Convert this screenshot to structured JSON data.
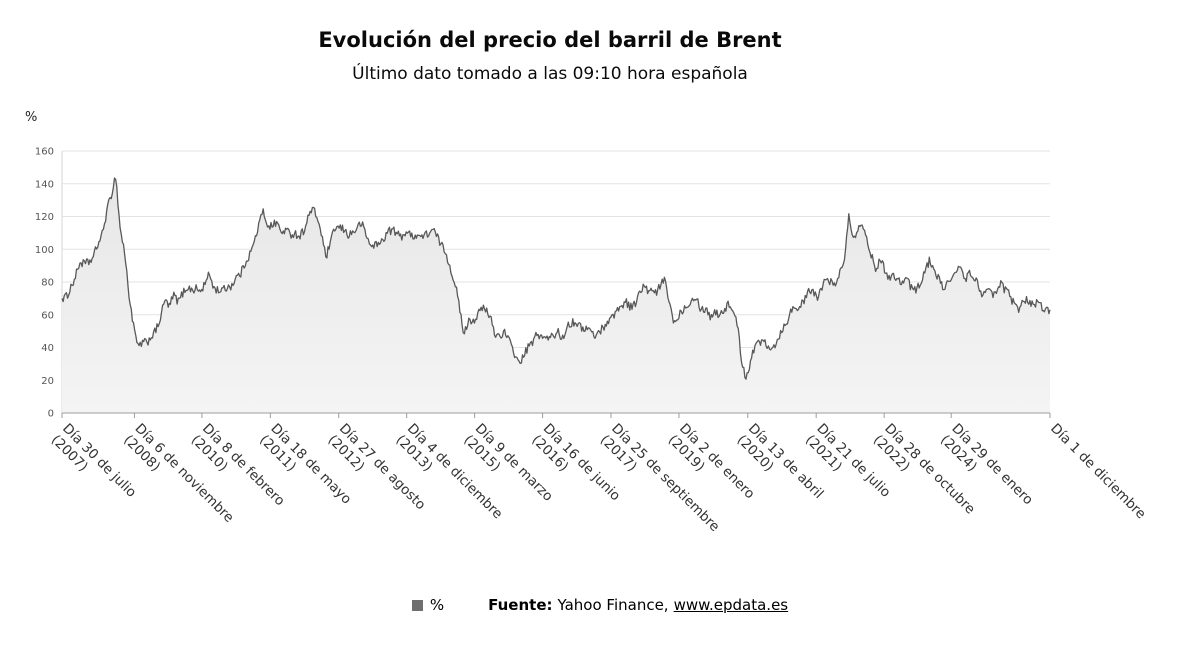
{
  "title": "Evolución del precio del barril de Brent",
  "subtitle": "Último dato tomado a las 09:10 hora española",
  "y_axis_unit": "%",
  "legend": {
    "series_label": "%",
    "source_label": "Fuente:",
    "source_text": "Yahoo Finance,",
    "source_link": "www.epdata.es"
  },
  "colors": {
    "line": "#58585a",
    "fill_top": "#e7e7e7",
    "fill_bottom": "#f4f4f4",
    "grid": "#e3e3e3",
    "axis": "#9c9c9c",
    "left_axis": "#d6d6d6",
    "tick_text": "#555555",
    "x_label_text": "#333333",
    "legend_swatch": "#6f6f6f"
  },
  "chart_data": {
    "type": "area",
    "title": "Evolución del precio del barril de Brent",
    "subtitle": "Último dato tomado a las 09:10 hora española",
    "xlabel": "",
    "ylabel": "%",
    "ylim": [
      0,
      160
    ],
    "grid": true,
    "legend_position": "bottom",
    "y_ticks": [
      0,
      20,
      40,
      60,
      80,
      100,
      120,
      140,
      160
    ],
    "x_ticks": [
      {
        "line1": "Día 30 de julio",
        "line2": "(2007)",
        "index": 0
      },
      {
        "line1": "Día 6 de noviembre",
        "line2": "(2008)",
        "index": 16.2
      },
      {
        "line1": "Día 8 de febrero",
        "line2": "(2010)",
        "index": 31.3
      },
      {
        "line1": "Día 18 de mayo",
        "line2": "(2011)",
        "index": 46.6
      },
      {
        "line1": "Día 27 de agosto",
        "line2": "(2012)",
        "index": 61.9
      },
      {
        "line1": "Día 4 de diciembre",
        "line2": "(2013)",
        "index": 77.1
      },
      {
        "line1": "Día 9 de marzo",
        "line2": "(2015)",
        "index": 92.3
      },
      {
        "line1": "Día 16 de junio",
        "line2": "(2016)",
        "index": 107.5
      },
      {
        "line1": "Día 25 de septiembre",
        "line2": "(2017)",
        "index": 122.8
      },
      {
        "line1": "Día 2 de enero",
        "line2": "(2019)",
        "index": 138.0
      },
      {
        "line1": "Día 13 de abril",
        "line2": "(2020)",
        "index": 153.4
      },
      {
        "line1": "Día 21 de julio",
        "line2": "(2021)",
        "index": 168.7
      },
      {
        "line1": "Día 28 de octubre",
        "line2": "(2022)",
        "index": 183.9
      },
      {
        "line1": "Día 29 de enero",
        "line2": "(2024)",
        "index": 198.9
      },
      {
        "line1": "Día 1 de diciembre",
        "line2": "",
        "index": 221
      }
    ],
    "series": [
      {
        "name": "%",
        "x_start": "2007-07",
        "x_step": "1 month",
        "values": [
          70,
          71,
          77,
          83,
          92,
          91,
          92,
          95,
          103,
          109,
          123,
          133,
          145,
          113,
          98,
          72,
          53,
          40,
          43,
          43,
          47,
          50,
          58,
          69,
          65,
          72,
          68,
          73,
          77,
          75,
          76,
          74,
          79,
          85,
          76,
          75,
          75,
          77,
          78,
          83,
          85,
          92,
          97,
          104,
          115,
          123,
          115,
          114,
          117,
          110,
          112,
          109,
          110,
          108,
          111,
          119,
          125,
          120,
          110,
          95,
          103,
          113,
          113,
          112,
          109,
          110,
          113,
          116,
          109,
          102,
          103,
          103,
          107,
          111,
          112,
          109,
          108,
          111,
          108,
          109,
          108,
          108,
          110,
          112,
          107,
          102,
          97,
          87,
          79,
          62,
          48,
          58,
          56,
          60,
          64,
          62,
          57,
          47,
          48,
          49,
          44,
          38,
          31,
          33,
          39,
          42,
          47,
          48,
          45,
          46,
          47,
          50,
          45,
          54,
          55,
          56,
          52,
          52,
          51,
          47,
          49,
          52,
          56,
          58,
          63,
          64,
          69,
          65,
          66,
          72,
          77,
          75,
          74,
          73,
          79,
          81,
          65,
          55,
          60,
          64,
          66,
          71,
          70,
          63,
          64,
          59,
          62,
          60,
          63,
          66,
          64,
          55,
          33,
          21,
          32,
          41,
          43,
          45,
          41,
          40,
          44,
          51,
          55,
          62,
          65,
          65,
          68,
          74,
          74,
          71,
          75,
          84,
          80,
          77,
          86,
          94,
          123,
          106,
          113,
          117,
          105,
          97,
          89,
          93,
          88,
          83,
          84,
          83,
          79,
          83,
          76,
          75,
          80,
          86,
          93,
          89,
          82,
          77,
          79,
          82,
          85,
          90,
          82,
          85,
          83,
          78,
          72,
          74,
          73,
          73,
          79,
          75,
          72,
          66,
          64,
          69,
          69,
          67,
          67,
          65,
          63,
          63
        ]
      }
    ]
  }
}
